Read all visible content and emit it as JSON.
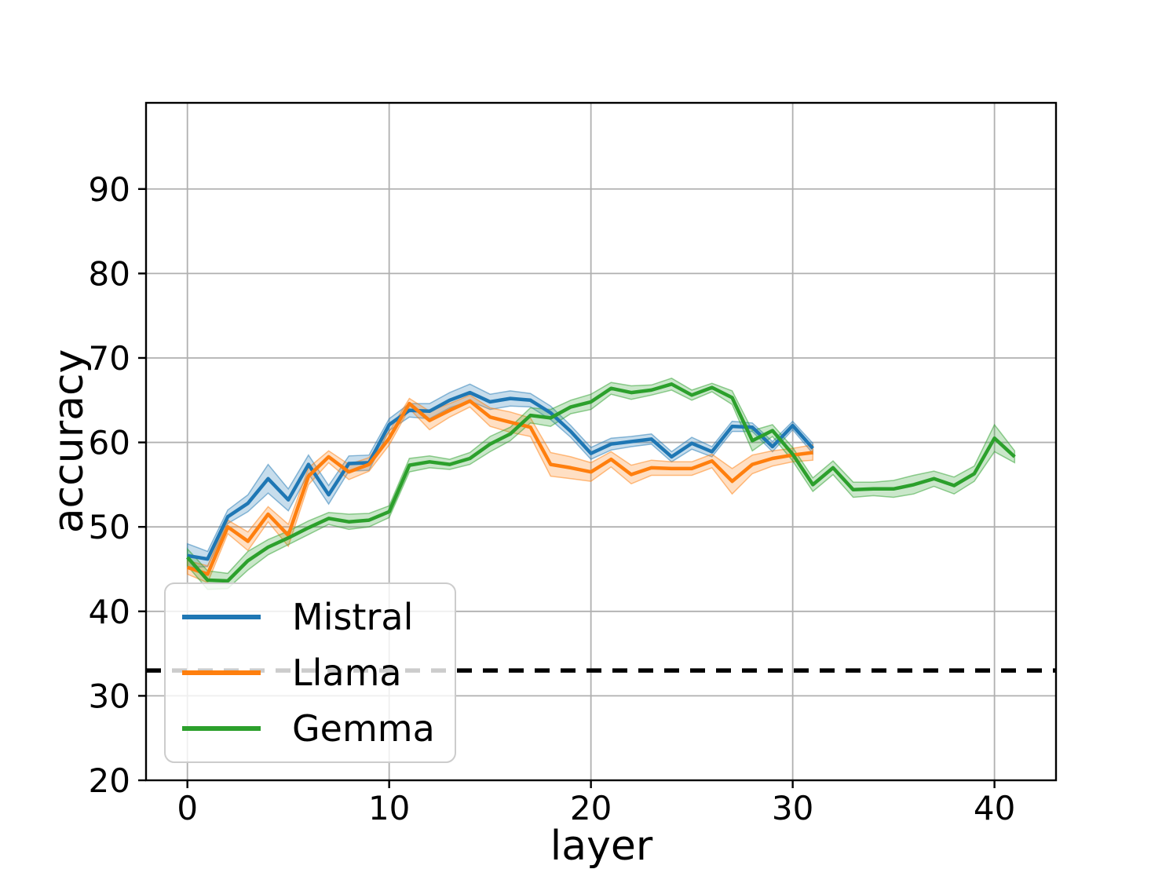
{
  "chart_data": {
    "type": "line",
    "title": "",
    "xlabel": "layer",
    "ylabel": "accuracy",
    "xlim": [
      -2.05,
      43.05
    ],
    "ylim": [
      20,
      100.2
    ],
    "xticks": [
      0,
      10,
      20,
      30,
      40
    ],
    "yticks": [
      20,
      30,
      40,
      50,
      60,
      70,
      80,
      90
    ],
    "grid": true,
    "grid_color": "#b0b0b0",
    "legend_position": "lower left",
    "baseline": {
      "value": 33,
      "style": "dashed",
      "color": "#000000"
    },
    "series": [
      {
        "name": "Mistral",
        "color": "#1f77b4",
        "x": [
          0,
          1,
          2,
          3,
          4,
          5,
          6,
          7,
          8,
          9,
          10,
          11,
          12,
          13,
          14,
          15,
          16,
          17,
          18,
          19,
          20,
          21,
          22,
          23,
          24,
          25,
          26,
          27,
          28,
          29,
          30,
          31
        ],
        "y": [
          46.6,
          46.2,
          51.2,
          52.8,
          55.7,
          53.2,
          57.4,
          53.8,
          57.5,
          57.6,
          62.1,
          63.8,
          63.7,
          65.0,
          65.9,
          64.8,
          65.2,
          65.0,
          63.5,
          61.3,
          58.7,
          59.8,
          60.1,
          60.4,
          58.3,
          59.9,
          58.9,
          61.9,
          61.8,
          59.5,
          62.0,
          59.3
        ],
        "err": [
          1.4,
          0.9,
          0.8,
          1.0,
          1.7,
          1.3,
          1.1,
          1.1,
          0.9,
          0.9,
          0.7,
          0.8,
          0.9,
          0.9,
          1.0,
          0.9,
          0.9,
          0.8,
          0.8,
          0.7,
          0.7,
          0.7,
          0.6,
          0.6,
          0.6,
          0.7,
          0.6,
          0.6,
          0.5,
          0.6,
          0.5,
          0.6
        ]
      },
      {
        "name": "Llama",
        "color": "#ff7f0e",
        "x": [
          0,
          1,
          2,
          3,
          4,
          5,
          6,
          7,
          8,
          9,
          10,
          11,
          12,
          13,
          14,
          15,
          16,
          17,
          18,
          19,
          20,
          21,
          22,
          23,
          24,
          25,
          26,
          27,
          28,
          29,
          30,
          31
        ],
        "y": [
          45.2,
          44.4,
          50.0,
          48.3,
          51.5,
          49.0,
          56.0,
          58.3,
          56.5,
          57.4,
          60.5,
          64.6,
          62.6,
          63.8,
          64.9,
          63.0,
          62.4,
          61.8,
          57.4,
          57.0,
          56.5,
          58.0,
          56.2,
          57.0,
          56.9,
          56.9,
          57.8,
          55.4,
          57.4,
          58.1,
          58.5,
          58.8
        ],
        "err": [
          0.8,
          1.0,
          0.8,
          1.1,
          0.9,
          1.3,
          1.0,
          0.7,
          0.9,
          0.8,
          0.8,
          0.6,
          1.1,
          0.8,
          0.7,
          1.1,
          1.2,
          1.1,
          1.4,
          1.3,
          1.1,
          0.9,
          1.1,
          0.9,
          0.8,
          0.8,
          0.8,
          1.5,
          1.1,
          0.9,
          0.8,
          0.9
        ]
      },
      {
        "name": "Gemma",
        "color": "#2ca02c",
        "x": [
          0,
          1,
          2,
          3,
          4,
          5,
          6,
          7,
          8,
          9,
          10,
          11,
          12,
          13,
          14,
          15,
          16,
          17,
          18,
          19,
          20,
          21,
          22,
          23,
          24,
          25,
          26,
          27,
          28,
          29,
          30,
          31,
          32,
          33,
          34,
          35,
          36,
          37,
          38,
          39,
          40,
          41
        ],
        "y": [
          46.4,
          43.7,
          43.6,
          46.0,
          47.6,
          48.7,
          49.9,
          51.0,
          50.6,
          50.8,
          51.8,
          57.3,
          57.7,
          57.4,
          58.1,
          59.8,
          61.0,
          63.2,
          62.9,
          64.2,
          64.8,
          66.4,
          65.9,
          66.2,
          66.9,
          65.6,
          66.5,
          65.3,
          60.2,
          61.4,
          58.6,
          55.0,
          57.0,
          54.4,
          54.5,
          54.5,
          55.0,
          55.7,
          54.9,
          56.3,
          60.5,
          58.3
        ],
        "err": [
          1.0,
          1.1,
          0.9,
          1.1,
          0.9,
          0.8,
          0.8,
          0.7,
          0.9,
          0.8,
          0.7,
          0.8,
          0.7,
          0.6,
          0.7,
          0.9,
          0.8,
          0.9,
          1.0,
          0.8,
          0.9,
          0.7,
          0.8,
          0.6,
          0.7,
          0.6,
          0.5,
          0.8,
          1.2,
          0.7,
          0.8,
          0.8,
          0.8,
          0.9,
          0.8,
          1.0,
          1.1,
          0.9,
          1.0,
          0.9,
          1.6,
          0.7
        ]
      }
    ]
  }
}
